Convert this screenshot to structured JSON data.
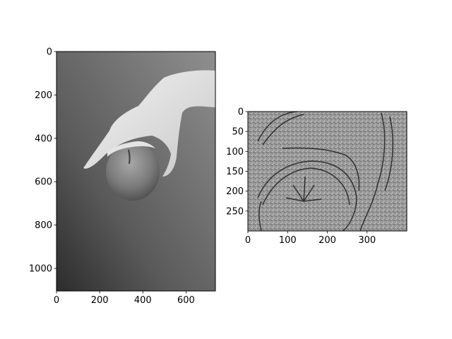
{
  "figure": {
    "background": "#ffffff"
  },
  "chart_data": [
    {
      "type": "image",
      "image_content": "grayscale photo of a hand holding an apple",
      "x_ticks": [
        "0",
        "200",
        "400",
        "600"
      ],
      "y_ticks": [
        "0",
        "200",
        "400",
        "600",
        "800",
        "1000"
      ],
      "xlim": [
        0,
        736
      ],
      "ylim": [
        1104,
        0
      ],
      "colormap": "gray"
    },
    {
      "type": "image",
      "image_content": "edge-filtered grayscale crop of the apple and hand",
      "x_ticks": [
        "0",
        "100",
        "200",
        "300"
      ],
      "y_ticks": [
        "0",
        "50",
        "100",
        "150",
        "200",
        "250"
      ],
      "xlim": [
        0,
        400
      ],
      "ylim": [
        300,
        0
      ],
      "colormap": "gray"
    }
  ]
}
